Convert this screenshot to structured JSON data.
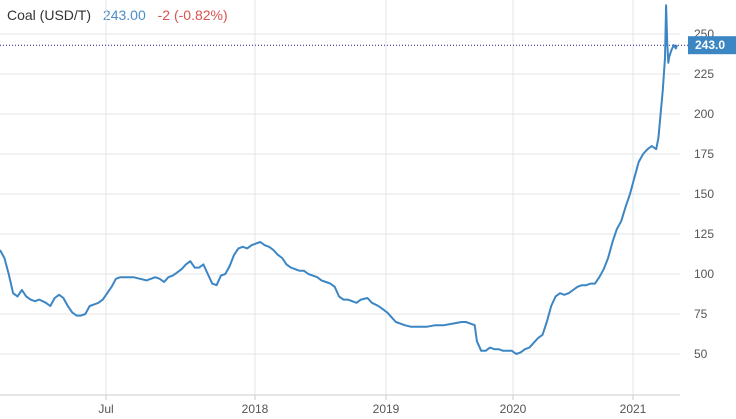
{
  "header": {
    "name": "Coal (USD/T)",
    "price": "243.00",
    "change": "-2 (-0.82%)"
  },
  "colors": {
    "line": "#3c86c4",
    "price": "#4b8ec8",
    "change": "#d9534f",
    "grid": "#e6e6e6",
    "last_price_line": "#1a1a8c",
    "tag": "#3c86c4"
  },
  "chart_data": {
    "type": "line",
    "title": "",
    "xlabel": "",
    "ylabel": "",
    "ylim": [
      25,
      263
    ],
    "xlim": [
      2016.35,
      2021.35
    ],
    "grid": true,
    "y_ticks": [
      50,
      75,
      100,
      125,
      150,
      175,
      200,
      225,
      250
    ],
    "x_ticks": [
      {
        "label": "Jul",
        "x": 2016.5
      },
      {
        "label": "2018",
        "x": 2017.0
      },
      {
        "label": "2019",
        "x": 2018.0
      },
      {
        "label": "2020",
        "x": 2019.0
      },
      {
        "label": "2021",
        "x": 2020.0
      }
    ],
    "last_value": 243.0,
    "last_value_label": "243.0",
    "series": [
      {
        "points": [
          [
            2015.87,
            115
          ],
          [
            2015.89,
            110
          ],
          [
            2015.91,
            100
          ],
          [
            2015.93,
            88
          ],
          [
            2015.95,
            86
          ],
          [
            2015.97,
            90
          ],
          [
            2015.99,
            86
          ],
          [
            2016.01,
            84
          ],
          [
            2016.03,
            83
          ],
          [
            2016.05,
            84
          ],
          [
            2016.08,
            82
          ],
          [
            2016.1,
            80
          ],
          [
            2016.12,
            85
          ],
          [
            2016.14,
            87
          ],
          [
            2016.16,
            85
          ],
          [
            2016.18,
            80
          ],
          [
            2016.2,
            76
          ],
          [
            2016.22,
            74
          ],
          [
            2016.24,
            74
          ],
          [
            2016.26,
            75
          ],
          [
            2016.28,
            80
          ],
          [
            2016.3,
            81
          ],
          [
            2016.32,
            82
          ],
          [
            2016.34,
            84
          ],
          [
            2016.36,
            88
          ],
          [
            2016.38,
            92
          ],
          [
            2016.4,
            97
          ],
          [
            2016.42,
            98
          ],
          [
            2016.45,
            98
          ],
          [
            2016.48,
            98
          ],
          [
            2016.51,
            97
          ],
          [
            2016.54,
            96
          ],
          [
            2016.56,
            97
          ],
          [
            2016.58,
            98
          ],
          [
            2016.6,
            97
          ],
          [
            2016.62,
            95
          ],
          [
            2016.64,
            98
          ],
          [
            2016.66,
            99
          ],
          [
            2016.68,
            101
          ],
          [
            2016.7,
            103
          ],
          [
            2016.72,
            106
          ],
          [
            2016.74,
            108
          ],
          [
            2016.76,
            104
          ],
          [
            2016.78,
            104
          ],
          [
            2016.8,
            106
          ],
          [
            2016.82,
            100
          ],
          [
            2016.84,
            94
          ],
          [
            2016.86,
            93
          ],
          [
            2016.88,
            99
          ],
          [
            2016.9,
            100
          ],
          [
            2016.92,
            105
          ],
          [
            2016.94,
            112
          ],
          [
            2016.96,
            116
          ],
          [
            2016.98,
            117
          ],
          [
            2017.0,
            116
          ],
          [
            2017.02,
            118
          ],
          [
            2017.04,
            119
          ],
          [
            2017.06,
            120
          ],
          [
            2017.08,
            118
          ],
          [
            2017.1,
            117
          ],
          [
            2017.12,
            115
          ],
          [
            2017.14,
            112
          ],
          [
            2017.16,
            110
          ],
          [
            2017.18,
            106
          ],
          [
            2017.2,
            104
          ],
          [
            2017.22,
            103
          ],
          [
            2017.24,
            102
          ],
          [
            2017.26,
            102
          ],
          [
            2017.28,
            100
          ],
          [
            2017.3,
            99
          ],
          [
            2017.32,
            98
          ],
          [
            2017.34,
            96
          ],
          [
            2017.36,
            95
          ],
          [
            2017.38,
            94
          ],
          [
            2017.4,
            92
          ],
          [
            2017.42,
            86
          ],
          [
            2017.44,
            84
          ],
          [
            2017.46,
            84
          ],
          [
            2017.48,
            83
          ],
          [
            2017.5,
            82
          ],
          [
            2017.52,
            84
          ],
          [
            2017.55,
            85
          ],
          [
            2017.57,
            82
          ],
          [
            2017.6,
            80
          ],
          [
            2017.62,
            78
          ],
          [
            2017.64,
            76
          ],
          [
            2017.66,
            73
          ],
          [
            2017.68,
            70
          ],
          [
            2017.7,
            69
          ],
          [
            2017.72,
            68
          ],
          [
            2017.75,
            67
          ],
          [
            2017.78,
            67
          ],
          [
            2017.82,
            67
          ],
          [
            2017.86,
            68
          ],
          [
            2017.9,
            68
          ],
          [
            2017.94,
            69
          ],
          [
            2017.98,
            70
          ],
          [
            2018.0,
            70
          ],
          [
            2018.02,
            69
          ],
          [
            2018.04,
            68
          ],
          [
            2018.05,
            58
          ],
          [
            2018.07,
            52
          ],
          [
            2018.09,
            52
          ],
          [
            2018.11,
            54
          ],
          [
            2018.13,
            53
          ],
          [
            2018.15,
            53
          ],
          [
            2018.17,
            52
          ],
          [
            2018.19,
            52
          ],
          [
            2018.21,
            52
          ],
          [
            2018.23,
            50
          ],
          [
            2018.25,
            51
          ],
          [
            2018.27,
            53
          ],
          [
            2018.29,
            54
          ],
          [
            2018.31,
            57
          ],
          [
            2018.33,
            60
          ],
          [
            2018.35,
            62
          ],
          [
            2018.37,
            70
          ],
          [
            2018.39,
            80
          ],
          [
            2018.41,
            86
          ],
          [
            2018.43,
            88
          ],
          [
            2018.45,
            87
          ],
          [
            2018.47,
            88
          ],
          [
            2018.49,
            90
          ],
          [
            2018.51,
            92
          ],
          [
            2018.53,
            93
          ],
          [
            2018.55,
            93
          ],
          [
            2018.57,
            94
          ],
          [
            2018.59,
            94
          ],
          [
            2018.61,
            98
          ],
          [
            2018.63,
            103
          ],
          [
            2018.65,
            110
          ],
          [
            2018.67,
            120
          ],
          [
            2018.69,
            128
          ],
          [
            2018.71,
            133
          ],
          [
            2018.73,
            142
          ],
          [
            2018.75,
            150
          ],
          [
            2018.77,
            160
          ],
          [
            2018.79,
            170
          ],
          [
            2018.81,
            175
          ],
          [
            2018.83,
            178
          ],
          [
            2018.85,
            180
          ],
          [
            2018.87,
            178
          ],
          [
            2018.88,
            185
          ],
          [
            2018.89,
            200
          ],
          [
            2018.9,
            215
          ],
          [
            2018.91,
            235
          ],
          [
            2018.915,
            268
          ],
          [
            2018.92,
            245
          ],
          [
            2018.925,
            232
          ],
          [
            2018.93,
            236
          ],
          [
            2018.94,
            240
          ],
          [
            2018.95,
            243
          ],
          [
            2018.96,
            241
          ],
          [
            2018.965,
            243
          ]
        ]
      }
    ]
  }
}
